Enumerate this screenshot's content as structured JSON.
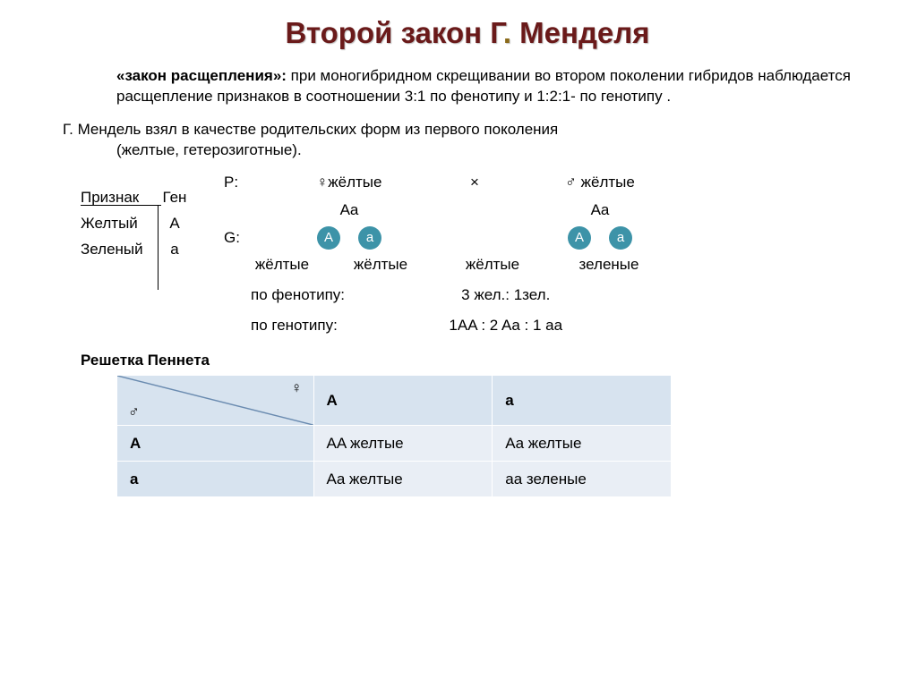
{
  "title_parts": {
    "p1": "Второй закон Г",
    "dot": ". ",
    "p2": "Менделя"
  },
  "title_colors": {
    "p1": "#6a1a1a",
    "dot": "#8a6a1a",
    "p2": "#6a1a1a"
  },
  "law": {
    "name": "«закон расщепления»: ",
    "text": "при моногибридном скрещивании во втором поколении гибридов наблюдается расщепление признаков в соотношении 3:1 по фенотипу и 1:2:1- по генотипу ."
  },
  "mendel": {
    "line1": "Г. Мендель взял в качестве родительских форм из первого поколения",
    "line2": "(желтые, гетерозиготные)."
  },
  "traits": {
    "header_trait": "Признак",
    "header_gene": "Ген",
    "rows": [
      {
        "label": "Желтый",
        "gene": "A"
      },
      {
        "label": "Зеленый",
        "gene": "a"
      }
    ]
  },
  "cross": {
    "P": "P:",
    "female_sym": "♀",
    "male_sym": "♂",
    "parent_pheno": "жёлтые",
    "x": "×",
    "parent_geno": "Aa",
    "G": "G:",
    "gametes": [
      "A",
      "a"
    ],
    "gamete_color": "#3d93a8",
    "gamete_text": "#ffffff"
  },
  "offspring": {
    "labels": [
      "жёлтые",
      "жёлтые",
      "жёлтые",
      "зеленые"
    ],
    "pheno_label": "по фенотипу:",
    "pheno_ratio": "3 жел.:    1зел.",
    "geno_label": "по генотипу:",
    "geno_ratio": "1AA :  2 Aa : 1 aa"
  },
  "punnett": {
    "title": "Решетка Пеннета",
    "col_headers": [
      "A",
      "a"
    ],
    "row_headers": [
      "A",
      "a"
    ],
    "cells": [
      [
        "AA желтые",
        "Aa желтые"
      ],
      [
        "Aa желтые",
        "aa зеленые"
      ]
    ],
    "corner_female": "♀",
    "corner_male": "♂",
    "header_bg": "#d7e3ef",
    "body_bg": "#e9eef5",
    "diag_color": "#6a8bb0"
  }
}
